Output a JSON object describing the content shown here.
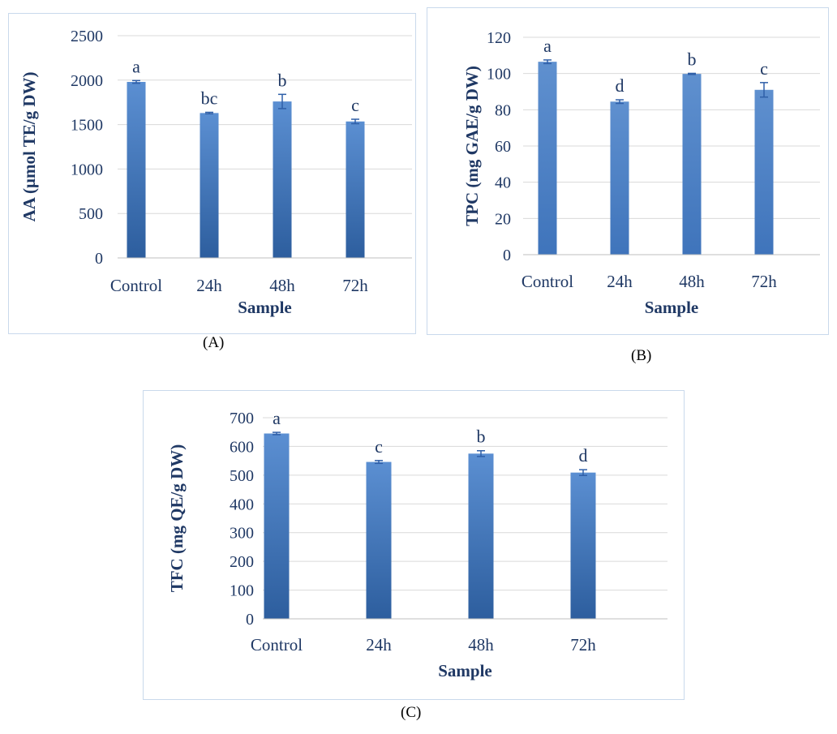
{
  "colors": {
    "bar_top": "#5b8fd2",
    "bar_bottom": "#2d5e9e",
    "bar_solid": "#4b7fc4",
    "text": "#1f3864",
    "grid": "#d9d9d9",
    "error": "#2f5fa8"
  },
  "panel_labels": {
    "a": "(A)",
    "b": "(B)",
    "c": "(C)"
  },
  "chart_data": [
    {
      "type": "bar",
      "panel": "A",
      "categories": [
        "Control",
        "24h",
        "48h",
        "72h"
      ],
      "values": [
        1980,
        1630,
        1760,
        1535
      ],
      "errors": [
        15,
        8,
        80,
        25
      ],
      "letters": [
        "a",
        "bc",
        "b",
        "c"
      ],
      "yticks": [
        "0",
        "500",
        "1000",
        "1500",
        "2000",
        "2500"
      ],
      "ylim": [
        0,
        2500
      ],
      "xlabel": "Sample",
      "ylabel": "AA (µmol TE/g DW)",
      "grid": true
    },
    {
      "type": "bar",
      "panel": "B",
      "categories": [
        "Control",
        "24h",
        "48h",
        "72h"
      ],
      "values": [
        106.5,
        84.5,
        99.8,
        91
      ],
      "errors": [
        1,
        1,
        0.3,
        4
      ],
      "letters": [
        "a",
        "d",
        "b",
        "c"
      ],
      "yticks": [
        "0",
        "20",
        "40",
        "60",
        "80",
        "100",
        "120"
      ],
      "ylim": [
        0,
        120
      ],
      "xlabel": "Sample",
      "ylabel": "TPC (mg GAE/g DW)",
      "grid": true
    },
    {
      "type": "bar",
      "panel": "C",
      "categories": [
        "Control",
        "24h",
        "48h",
        "72h"
      ],
      "values": [
        645,
        546,
        575,
        509
      ],
      "errors": [
        4,
        5,
        10,
        10
      ],
      "letters": [
        "a",
        "c",
        "b",
        "d"
      ],
      "yticks": [
        "0",
        "100",
        "200",
        "300",
        "400",
        "500",
        "600",
        "700"
      ],
      "ylim": [
        0,
        700
      ],
      "xlabel": "Sample",
      "ylabel": "TFC (mg QE/g DW)",
      "grid": true
    }
  ]
}
